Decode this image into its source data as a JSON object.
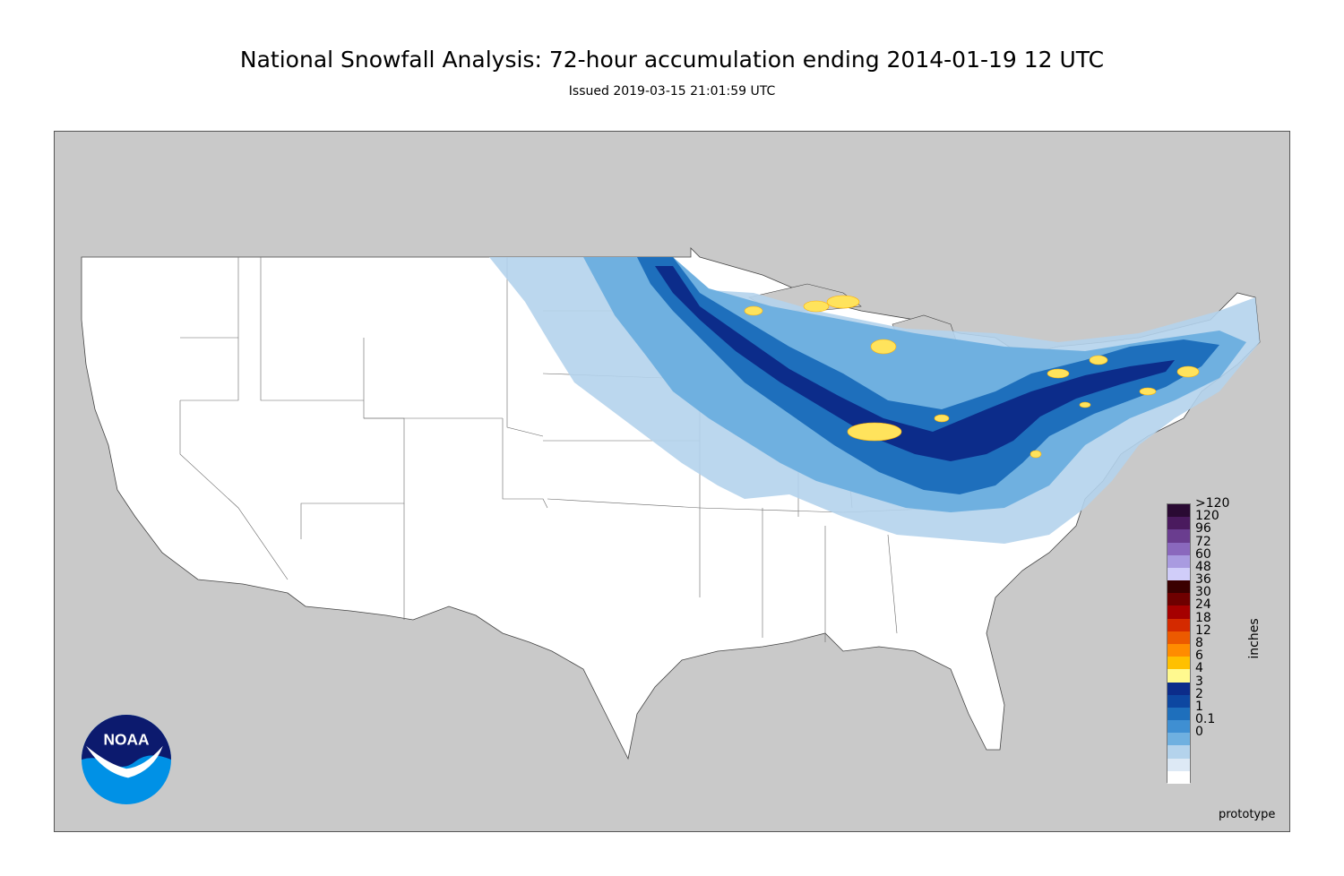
{
  "header": {
    "title": "National Snowfall Analysis: 72-hour accumulation ending 2014-01-19 12 UTC",
    "subtitle": "Issued 2019-03-15 21:01:59 UTC"
  },
  "legend": {
    "units": "inches",
    "levels": [
      {
        "label": ">120",
        "color": "#2a0a33"
      },
      {
        "label": "120",
        "color": "#4a1a5e"
      },
      {
        "label": "96",
        "color": "#6a3d8f"
      },
      {
        "label": "72",
        "color": "#8a68bd"
      },
      {
        "label": "60",
        "color": "#a99be0"
      },
      {
        "label": "48",
        "color": "#d0cdf9"
      },
      {
        "label": "36",
        "color": "#3a0000"
      },
      {
        "label": "30",
        "color": "#6e0000"
      },
      {
        "label": "24",
        "color": "#a50000"
      },
      {
        "label": "18",
        "color": "#d42a00"
      },
      {
        "label": "12",
        "color": "#ec5a00"
      },
      {
        "label": "8",
        "color": "#ff8c00"
      },
      {
        "label": "6",
        "color": "#ffc000"
      },
      {
        "label": "4",
        "color": "#fff98f"
      },
      {
        "label": "3",
        "color": "#0c2c8a"
      },
      {
        "label": "2",
        "color": "#0d47a1"
      },
      {
        "label": "1",
        "color": "#1e6fbc"
      },
      {
        "label": "0.1",
        "color": "#3f8fd2"
      },
      {
        "label": "0",
        "color": "#6fb0e0"
      },
      {
        "label": "",
        "color": "#b4d3ec"
      },
      {
        "label": "",
        "color": "#dde9f5"
      },
      {
        "label": "",
        "color": "#ffffff"
      }
    ]
  },
  "footer": {
    "watermark": "prototype",
    "logo_text": "NOAA"
  },
  "colors": {
    "land_outside": "#c9c9c9",
    "conus": "#ffffff",
    "snow_light": "#b4d3ec",
    "snow_mid": "#6fb0e0",
    "snow_heavy": "#1e6fbc",
    "snow_deep": "#0c2c8a",
    "snow_max": "#ffe35c"
  }
}
